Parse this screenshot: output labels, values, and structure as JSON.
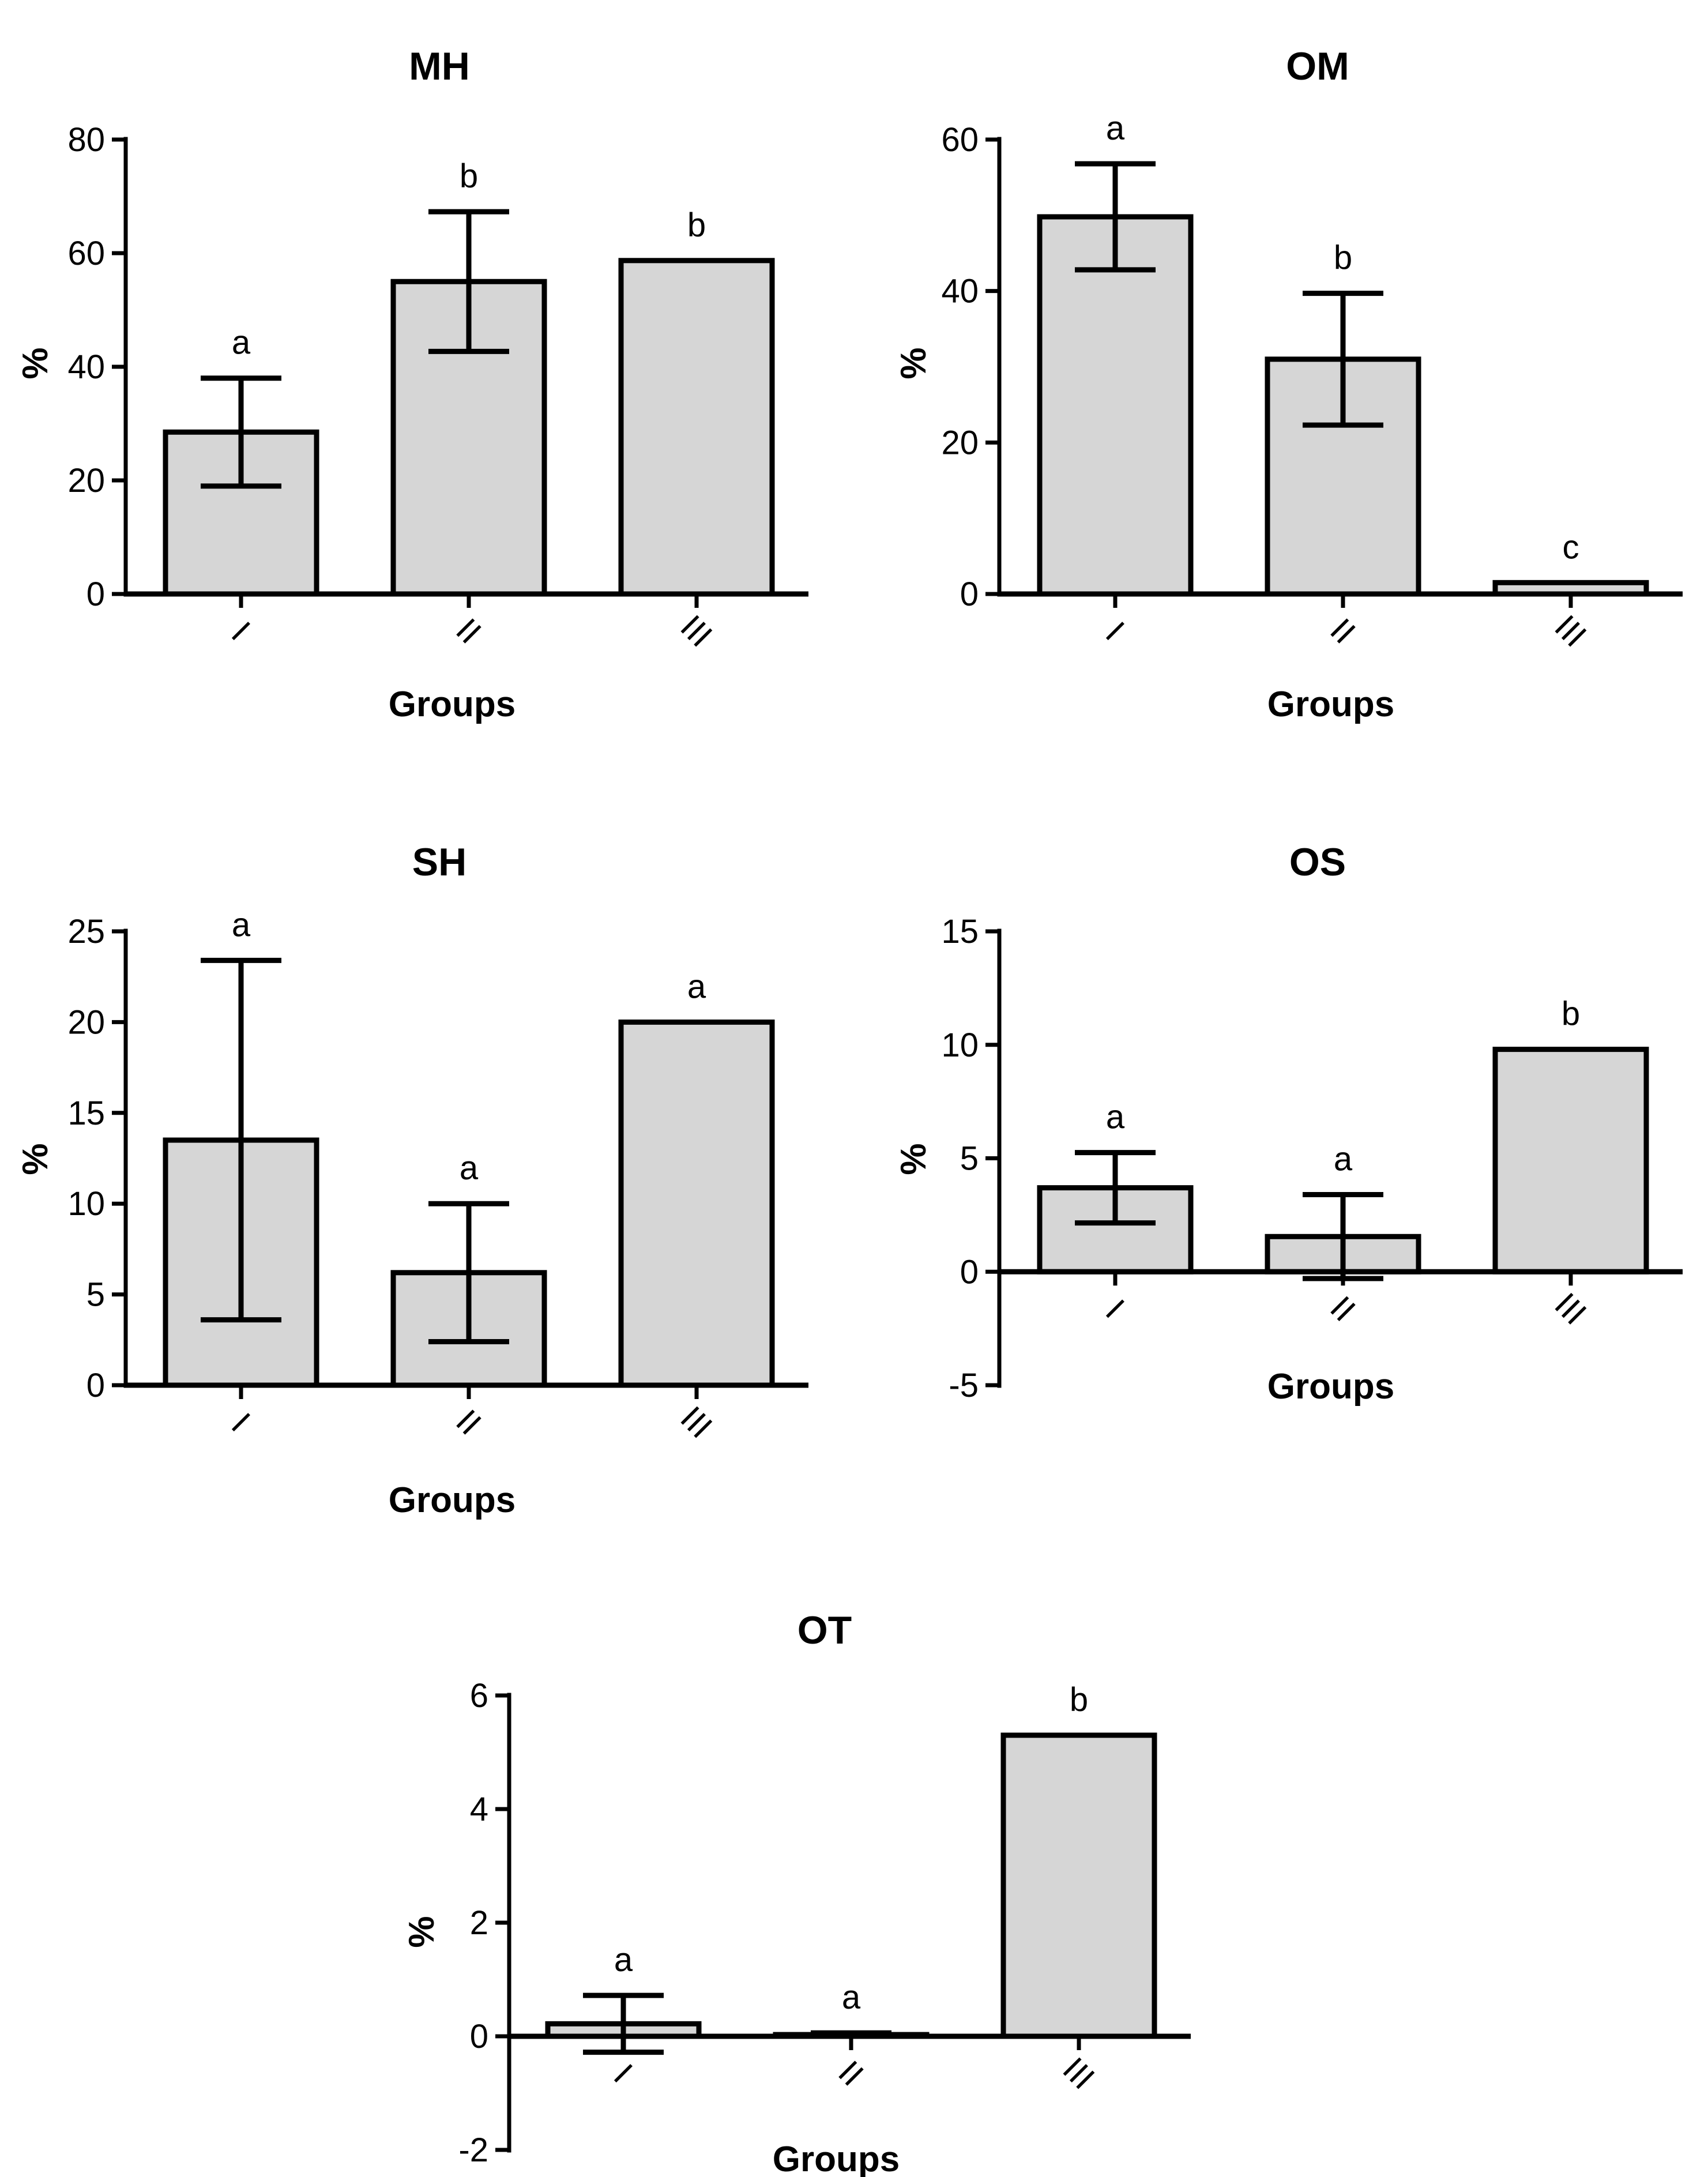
{
  "chart_data": [
    {
      "type": "bar",
      "title": "MH",
      "xlabel": "Groups",
      "ylabel": "%",
      "ylim": [
        0,
        80
      ],
      "yticks": [
        0,
        20,
        40,
        60,
        80
      ],
      "categories": [
        "I",
        "II",
        "III"
      ],
      "values": [
        28.5,
        55,
        58.7
      ],
      "errors": [
        9.5,
        12.3,
        0
      ],
      "annotations": [
        "a",
        "b",
        "b"
      ],
      "bar_color": "#d6d6d6"
    },
    {
      "type": "bar",
      "title": "OM",
      "xlabel": "Groups",
      "ylabel": "%",
      "ylim": [
        0,
        60
      ],
      "yticks": [
        0,
        20,
        40,
        60
      ],
      "categories": [
        "I",
        "II",
        "III"
      ],
      "values": [
        49.8,
        31,
        1.5
      ],
      "errors": [
        7,
        8.7,
        0
      ],
      "annotations": [
        "a",
        "b",
        "c"
      ],
      "bar_color": "#d6d6d6"
    },
    {
      "type": "bar",
      "title": "SH",
      "xlabel": "Groups",
      "ylabel": "%",
      "ylim": [
        0,
        25
      ],
      "yticks": [
        0,
        5,
        10,
        15,
        20,
        25
      ],
      "categories": [
        "I",
        "II",
        "III"
      ],
      "values": [
        13.5,
        6.2,
        20
      ],
      "errors": [
        9.9,
        3.8,
        0
      ],
      "annotations": [
        "a",
        "a",
        "a"
      ],
      "bar_color": "#d6d6d6"
    },
    {
      "type": "bar",
      "title": "OS",
      "xlabel": "Groups",
      "ylabel": "%",
      "ylim": [
        -5,
        15
      ],
      "yticks": [
        -5,
        0,
        5,
        10,
        15
      ],
      "categories": [
        "I",
        "II",
        "III"
      ],
      "values": [
        3.7,
        1.55,
        9.8
      ],
      "errors": [
        1.55,
        1.85,
        0
      ],
      "annotations": [
        "a",
        "a",
        "b"
      ],
      "bar_color": "#d6d6d6"
    },
    {
      "type": "bar",
      "title": "OT",
      "xlabel": "Groups",
      "ylabel": "%",
      "ylim": [
        -2,
        6
      ],
      "yticks": [
        -2,
        0,
        2,
        4,
        6
      ],
      "categories": [
        "I",
        "II",
        "III"
      ],
      "values": [
        0.22,
        0.03,
        5.3
      ],
      "errors": [
        0.5,
        0.03,
        0
      ],
      "annotations": [
        "a",
        "a",
        "b"
      ],
      "bar_color": "#d6d6d6"
    }
  ]
}
